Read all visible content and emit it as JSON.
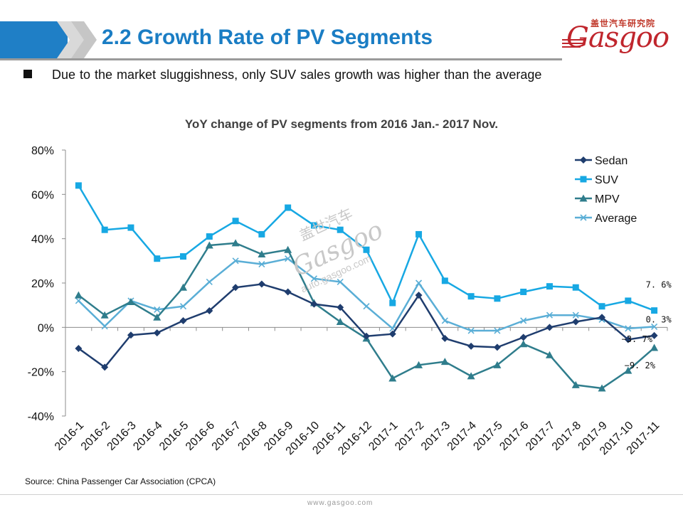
{
  "header": {
    "title": "2.2 Growth Rate of PV Segments",
    "logo_cn": "盖世汽车研究院",
    "logo_en": "Gasgoo"
  },
  "bullet": "Due to the market sluggishness, only SUV sales growth was higher than the average",
  "watermark": {
    "cn": "盖世汽车",
    "en": "Gasgoo",
    "url": "auto.gasgoo.com"
  },
  "source": "Source: China Passenger Car Association (CPCA)",
  "footer_url": "www.gasgoo.com",
  "colors": {
    "title": "#1a7dc4",
    "sedan": "#1f3d6e",
    "suv": "#17a8e3",
    "mpv": "#2f7d8c",
    "average": "#5aaed6"
  },
  "chart_data": {
    "type": "line",
    "title": "YoY change of PV segments from 2016 Jan.- 2017 Nov.",
    "xlabel": "",
    "ylabel": "",
    "ylim": [
      -40,
      80
    ],
    "yticks": [
      -40,
      -20,
      0,
      20,
      40,
      60,
      80
    ],
    "ytick_labels": [
      "-40%",
      "-20%",
      "0%",
      "20%",
      "40%",
      "60%",
      "80%"
    ],
    "categories": [
      "2016-1",
      "2016-2",
      "2016-3",
      "2016-4",
      "2016-5",
      "2016-6",
      "2016-7",
      "2016-8",
      "2016-9",
      "2016-10",
      "2016-11",
      "2016-12",
      "2017-1",
      "2017-2",
      "2017-3",
      "2017-4",
      "2017-5",
      "2017-6",
      "2017-7",
      "2017-8",
      "2017-9",
      "2017-10",
      "2017-11"
    ],
    "legend_position": "top-right",
    "grid": false,
    "series": [
      {
        "name": "Sedan",
        "marker": "diamond",
        "color": "#1f3d6e",
        "values": [
          -9.5,
          -18,
          -3.5,
          -2.5,
          3,
          7.5,
          18,
          19.5,
          16,
          10.5,
          9,
          -4,
          -3,
          14.5,
          -5,
          -8.5,
          -9,
          -4.5,
          0,
          2.5,
          4.5,
          -5.5,
          -3.7
        ]
      },
      {
        "name": "SUV",
        "marker": "square",
        "color": "#17a8e3",
        "values": [
          64,
          44,
          45,
          31,
          32,
          41,
          48,
          42,
          54,
          46,
          44,
          35,
          11,
          42,
          21,
          14,
          13,
          16,
          18.5,
          18,
          9.5,
          12,
          7.6
        ]
      },
      {
        "name": "MPV",
        "marker": "triangle",
        "color": "#2f7d8c",
        "values": [
          14.5,
          5.5,
          11.5,
          4.5,
          18,
          37,
          38,
          33,
          35,
          11,
          2.5,
          -5,
          -23,
          -17,
          -15.5,
          -22,
          -17,
          -7.5,
          -12.5,
          -26,
          -27.5,
          -19.5,
          -9.2
        ]
      },
      {
        "name": "Average",
        "marker": "x",
        "color": "#5aaed6",
        "values": [
          12,
          0.5,
          12,
          8,
          9.5,
          20.5,
          30,
          28.5,
          31,
          22,
          20.5,
          9.5,
          -0.5,
          20,
          3,
          -1.5,
          -1.5,
          3,
          5.5,
          5.5,
          3.5,
          -0.5,
          0.3
        ]
      }
    ],
    "annotations": [
      {
        "text": "7. 6%",
        "series": "SUV",
        "index": 22
      },
      {
        "text": "0. 3%",
        "series": "Average",
        "index": 22
      },
      {
        "text": "−3. 7%",
        "series": "Sedan",
        "index": 22
      },
      {
        "text": "−9. 2%",
        "series": "MPV",
        "index": 22
      }
    ]
  }
}
